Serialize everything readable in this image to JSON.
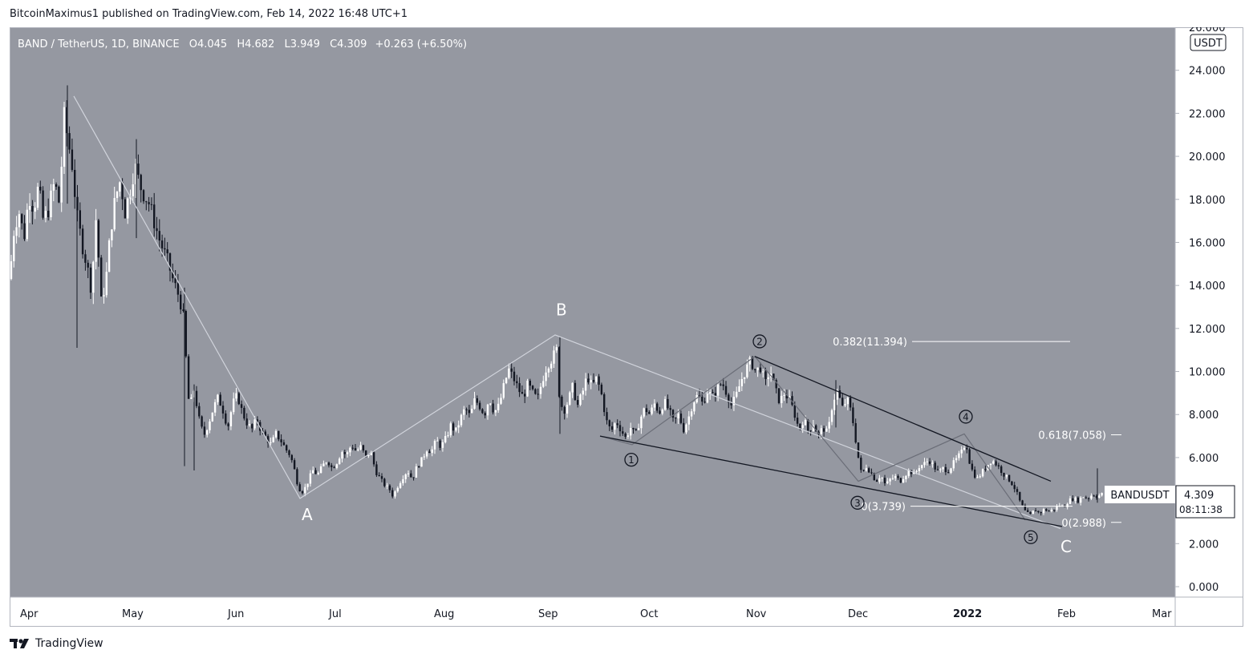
{
  "header": {
    "caption": "BitcoinMaximus1 published on TradingView.com, Feb 14, 2022 16:48 UTC+1"
  },
  "footer": {
    "brand": "TradingView"
  },
  "colors": {
    "background": "#9598a1",
    "candle_up": "#ffffff",
    "candle_down": "#131722",
    "wave_line": "#d1d4dc",
    "trend_line": "#131722"
  },
  "chart_data": {
    "type": "candlestick",
    "legend": {
      "symbol": "BAND / TetherUS, 1D, BINANCE",
      "o_label": "O",
      "open": "4.045",
      "h_label": "H",
      "high": "4.682",
      "l_label": "L",
      "low": "3.949",
      "c_label": "C",
      "close": "4.309",
      "change": "+0.263 (+6.50%)"
    },
    "currency": "USDT",
    "x_labels": [
      "Apr",
      "May",
      "Jun",
      "Jul",
      "Aug",
      "Sep",
      "Oct",
      "Nov",
      "Dec",
      "2022",
      "Feb",
      "Mar"
    ],
    "y_ticks": [
      "0.000",
      "2.000",
      "4.000",
      "6.000",
      "8.000",
      "10.000",
      "12.000",
      "14.000",
      "16.000",
      "18.000",
      "20.000",
      "22.000",
      "24.000",
      "26.000"
    ],
    "ylim": [
      0,
      26
    ],
    "price_path": [
      [
        0,
        14.3
      ],
      [
        6,
        16.8
      ],
      [
        12,
        17.4
      ],
      [
        18,
        16.2
      ],
      [
        24,
        18.2
      ],
      [
        30,
        17.6
      ],
      [
        36,
        18.6
      ],
      [
        42,
        17.0
      ],
      [
        48,
        17.5
      ],
      [
        56,
        18.8
      ],
      [
        62,
        17.8
      ],
      [
        68,
        21.8
      ],
      [
        74,
        20.5
      ],
      [
        78,
        19.6
      ],
      [
        84,
        17.2
      ],
      [
        90,
        16.0
      ],
      [
        96,
        15.0
      ],
      [
        102,
        13.8
      ],
      [
        108,
        17.3
      ],
      [
        114,
        13.2
      ],
      [
        120,
        14.2
      ],
      [
        126,
        16.6
      ],
      [
        132,
        18.1
      ],
      [
        138,
        18.9
      ],
      [
        144,
        17.4
      ],
      [
        150,
        18.4
      ],
      [
        156,
        19.6
      ],
      [
        162,
        18.7
      ],
      [
        168,
        18.2
      ],
      [
        174,
        17.8
      ],
      [
        180,
        17.0
      ],
      [
        186,
        16.2
      ],
      [
        192,
        15.6
      ],
      [
        198,
        15.0
      ],
      [
        204,
        14.2
      ],
      [
        210,
        13.6
      ],
      [
        216,
        12.8
      ],
      [
        220,
        10.5
      ],
      [
        224,
        8.2
      ],
      [
        230,
        9.2
      ],
      [
        236,
        7.8
      ],
      [
        242,
        7.0
      ],
      [
        248,
        7.6
      ],
      [
        254,
        8.3
      ],
      [
        260,
        8.8
      ],
      [
        266,
        8.2
      ],
      [
        272,
        7.4
      ],
      [
        278,
        8.5
      ],
      [
        284,
        8.9
      ],
      [
        290,
        8.1
      ],
      [
        296,
        7.6
      ],
      [
        302,
        7.3
      ],
      [
        308,
        7.8
      ],
      [
        314,
        7.2
      ],
      [
        320,
        6.9
      ],
      [
        326,
        6.6
      ],
      [
        332,
        7.1
      ],
      [
        338,
        6.8
      ],
      [
        344,
        6.4
      ],
      [
        350,
        6.1
      ],
      [
        356,
        5.3
      ],
      [
        360,
        4.6
      ],
      [
        366,
        4.4
      ],
      [
        372,
        4.9
      ],
      [
        378,
        5.4
      ],
      [
        384,
        5.2
      ],
      [
        390,
        5.6
      ],
      [
        396,
        5.9
      ],
      [
        402,
        5.5
      ],
      [
        408,
        5.8
      ],
      [
        414,
        6.3
      ],
      [
        420,
        6.1
      ],
      [
        426,
        6.6
      ],
      [
        432,
        6.3
      ],
      [
        438,
        6.5
      ],
      [
        444,
        6.0
      ],
      [
        450,
        6.3
      ],
      [
        456,
        5.4
      ],
      [
        462,
        5.0
      ],
      [
        468,
        4.7
      ],
      [
        474,
        4.5
      ],
      [
        478,
        4.2
      ],
      [
        484,
        4.7
      ],
      [
        490,
        5.1
      ],
      [
        496,
        5.4
      ],
      [
        502,
        5.0
      ],
      [
        508,
        5.6
      ],
      [
        514,
        5.9
      ],
      [
        520,
        6.4
      ],
      [
        526,
        6.3
      ],
      [
        532,
        6.8
      ],
      [
        538,
        6.5
      ],
      [
        544,
        6.9
      ],
      [
        550,
        7.5
      ],
      [
        556,
        7.2
      ],
      [
        562,
        7.8
      ],
      [
        568,
        8.3
      ],
      [
        574,
        7.9
      ],
      [
        580,
        8.7
      ],
      [
        586,
        8.4
      ],
      [
        592,
        8.0
      ],
      [
        598,
        8.8
      ],
      [
        604,
        8.1
      ],
      [
        610,
        8.4
      ],
      [
        616,
        9.3
      ],
      [
        622,
        10.1
      ],
      [
        628,
        9.7
      ],
      [
        634,
        9.2
      ],
      [
        640,
        8.8
      ],
      [
        646,
        9.4
      ],
      [
        652,
        9.0
      ],
      [
        658,
        8.7
      ],
      [
        664,
        9.6
      ],
      [
        670,
        10.3
      ],
      [
        676,
        10.6
      ],
      [
        682,
        11.0
      ],
      [
        684,
        9.2
      ],
      [
        690,
        8.1
      ],
      [
        696,
        8.6
      ],
      [
        702,
        9.3
      ],
      [
        708,
        8.4
      ],
      [
        714,
        9.0
      ],
      [
        720,
        9.8
      ],
      [
        726,
        9.3
      ],
      [
        732,
        9.7
      ],
      [
        738,
        8.9
      ],
      [
        744,
        7.7
      ],
      [
        750,
        7.2
      ],
      [
        756,
        7.7
      ],
      [
        762,
        7.3
      ],
      [
        768,
        6.9
      ],
      [
        774,
        7.4
      ],
      [
        780,
        7.0
      ],
      [
        786,
        7.8
      ],
      [
        792,
        8.3
      ],
      [
        798,
        8.0
      ],
      [
        804,
        8.5
      ],
      [
        810,
        8.1
      ],
      [
        816,
        8.6
      ],
      [
        822,
        8.2
      ],
      [
        828,
        7.6
      ],
      [
        834,
        8.0
      ],
      [
        840,
        7.3
      ],
      [
        846,
        7.8
      ],
      [
        852,
        8.6
      ],
      [
        858,
        8.9
      ],
      [
        864,
        8.5
      ],
      [
        870,
        9.1
      ],
      [
        876,
        8.8
      ],
      [
        882,
        9.2
      ],
      [
        888,
        9.5
      ],
      [
        894,
        9.0
      ],
      [
        900,
        8.4
      ],
      [
        906,
        8.9
      ],
      [
        912,
        9.6
      ],
      [
        918,
        10.1
      ],
      [
        924,
        10.5
      ],
      [
        930,
        10.0
      ],
      [
        936,
        10.2
      ],
      [
        942,
        9.4
      ],
      [
        948,
        10.1
      ],
      [
        954,
        9.2
      ],
      [
        960,
        8.6
      ],
      [
        966,
        9.0
      ],
      [
        972,
        8.7
      ],
      [
        978,
        8.1
      ],
      [
        984,
        7.3
      ],
      [
        990,
        7.8
      ],
      [
        996,
        7.2
      ],
      [
        1002,
        7.6
      ],
      [
        1008,
        7.0
      ],
      [
        1014,
        7.4
      ],
      [
        1020,
        7.1
      ],
      [
        1026,
        8.6
      ],
      [
        1032,
        9.1
      ],
      [
        1038,
        8.3
      ],
      [
        1044,
        8.7
      ],
      [
        1050,
        8.0
      ],
      [
        1054,
        7.0
      ],
      [
        1058,
        6.0
      ],
      [
        1062,
        5.2
      ],
      [
        1068,
        5.6
      ],
      [
        1074,
        5.3
      ],
      [
        1080,
        4.9
      ],
      [
        1086,
        5.2
      ],
      [
        1092,
        4.7
      ],
      [
        1098,
        5.0
      ],
      [
        1104,
        5.1
      ],
      [
        1110,
        4.9
      ],
      [
        1116,
        5.2
      ],
      [
        1122,
        5.4
      ],
      [
        1128,
        5.2
      ],
      [
        1134,
        5.6
      ],
      [
        1140,
        5.7
      ],
      [
        1146,
        5.9
      ],
      [
        1152,
        5.6
      ],
      [
        1158,
        5.3
      ],
      [
        1164,
        5.5
      ],
      [
        1170,
        5.4
      ],
      [
        1176,
        5.7
      ],
      [
        1182,
        6.0
      ],
      [
        1188,
        6.3
      ],
      [
        1192,
        6.8
      ],
      [
        1196,
        5.9
      ],
      [
        1200,
        5.4
      ],
      [
        1206,
        5.0
      ],
      [
        1212,
        5.3
      ],
      [
        1218,
        5.6
      ],
      [
        1224,
        5.9
      ],
      [
        1230,
        5.7
      ],
      [
        1236,
        5.4
      ],
      [
        1242,
        5.1
      ],
      [
        1248,
        4.9
      ],
      [
        1254,
        4.5
      ],
      [
        1260,
        3.9
      ],
      [
        1266,
        3.5
      ],
      [
        1272,
        3.3
      ],
      [
        1278,
        3.6
      ],
      [
        1284,
        3.4
      ],
      [
        1290,
        3.6
      ],
      [
        1296,
        3.5
      ],
      [
        1302,
        3.6
      ],
      [
        1308,
        3.8
      ],
      [
        1314,
        3.7
      ],
      [
        1320,
        4.0
      ],
      [
        1326,
        4.1
      ],
      [
        1332,
        4.0
      ],
      [
        1338,
        4.2
      ],
      [
        1344,
        4.1
      ],
      [
        1350,
        4.3
      ],
      [
        1356,
        4.2
      ],
      [
        1362,
        4.3
      ]
    ],
    "spikes": [
      {
        "x": 72,
        "high": 23.3,
        "low": 17.8
      },
      {
        "x": 84,
        "high": 18.0,
        "low": 11.1
      },
      {
        "x": 158,
        "high": 20.8,
        "low": 16.2
      },
      {
        "x": 218,
        "high": 13.9,
        "low": 5.6
      },
      {
        "x": 230,
        "high": 9.4,
        "low": 5.4
      },
      {
        "x": 686,
        "high": 11.6,
        "low": 7.1
      },
      {
        "x": 1030,
        "high": 9.6,
        "low": 7.4
      },
      {
        "x": 1356,
        "high": 5.5,
        "low": 3.9
      }
    ],
    "wave_labels": [
      {
        "label": "A",
        "x": 364,
        "y": 3.1
      },
      {
        "label": "B",
        "x": 681,
        "y": 12.6
      },
      {
        "label": "C",
        "x": 1310,
        "y": 1.6
      }
    ],
    "wave_counts": [
      {
        "label": "1",
        "x": 775,
        "y": 5.9
      },
      {
        "label": "2",
        "x": 935,
        "y": 11.4
      },
      {
        "label": "3",
        "x": 1057,
        "y": 3.9
      },
      {
        "label": "4",
        "x": 1192,
        "y": 7.9
      },
      {
        "label": "5",
        "x": 1273,
        "y": 2.3
      }
    ],
    "abc_lines": [
      [
        [
          80,
          22.8
        ],
        [
          362,
          4.1
        ],
        [
          680,
          11.7
        ],
        [
          1310,
          2.7
        ]
      ]
    ],
    "impulse_lines": [
      [
        [
          736,
          7.0
        ],
        [
          776,
          6.6
        ],
        [
          929,
          10.7
        ],
        [
          1058,
          4.9
        ],
        [
          1190,
          7.1
        ],
        [
          1266,
          3.1
        ]
      ]
    ],
    "trendlines": [
      [
        [
          929,
          10.7
        ],
        [
          1298,
          4.9
        ]
      ],
      [
        [
          736,
          7.0
        ],
        [
          1312,
          2.8
        ]
      ]
    ],
    "fib_levels": [
      {
        "label": "0.382(11.394)",
        "value": 11.394,
        "line_from": 1125,
        "line_to": 1322
      },
      {
        "label": "0.618(7.058)",
        "value": 7.058,
        "line_from": 1373,
        "line_to": 1386
      },
      {
        "label": "0(3.739)",
        "value": 3.739,
        "line_from": 1123,
        "line_to": 1325
      },
      {
        "label": "0(2.988)",
        "value": 2.988,
        "line_from": 1373,
        "line_to": 1386
      }
    ],
    "price_tag": {
      "symbol": "BANDUSDT",
      "price": "4.309",
      "countdown": "08:11:38"
    },
    "grid": false
  }
}
